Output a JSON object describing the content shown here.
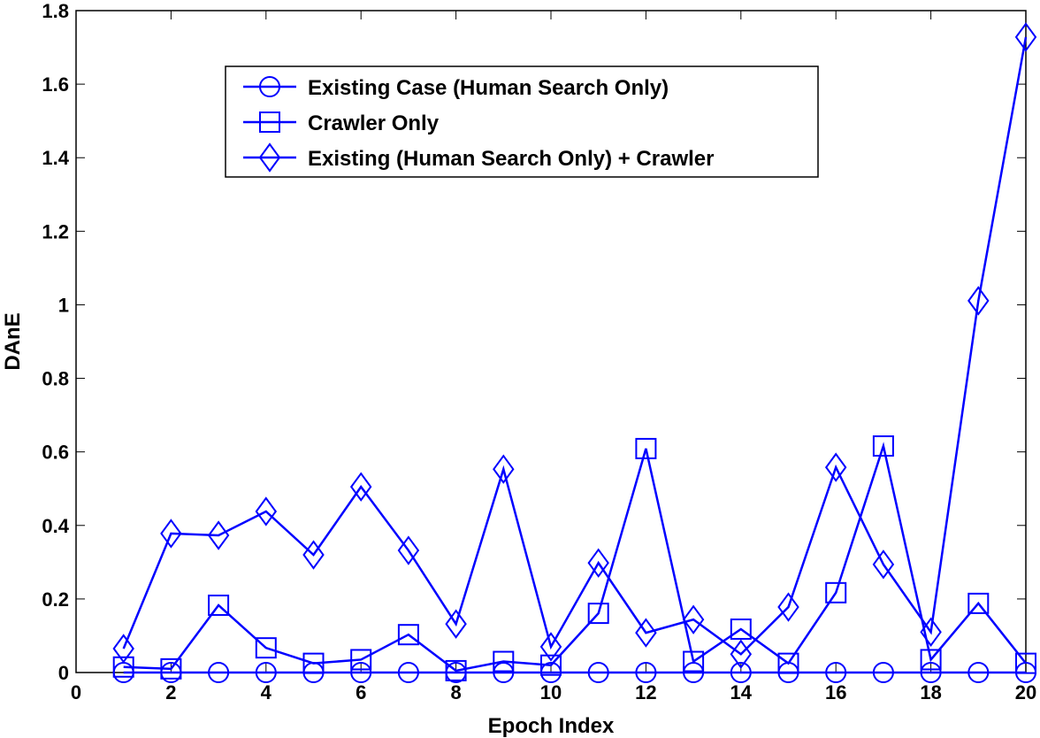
{
  "chart_data": {
    "type": "line",
    "xlabel": "Epoch Index",
    "ylabel": "DAnE",
    "x": [
      1,
      2,
      3,
      4,
      5,
      6,
      7,
      8,
      9,
      10,
      11,
      12,
      13,
      14,
      15,
      16,
      17,
      18,
      19,
      20
    ],
    "series": [
      {
        "name": "Existing Case (Human Search Only)",
        "color": "#0000ff",
        "marker": "circle",
        "values": [
          0,
          0,
          0,
          0,
          0,
          0,
          0,
          0,
          0,
          0,
          0,
          0,
          0,
          0,
          0,
          0,
          0,
          0,
          0,
          0
        ]
      },
      {
        "name": "Crawler Only",
        "color": "#0000ff",
        "marker": "square",
        "values": [
          0.015,
          0.01,
          0.183,
          0.067,
          0.025,
          0.035,
          0.103,
          0.005,
          0.03,
          0.02,
          0.161,
          0.609,
          0.03,
          0.118,
          0.025,
          0.217,
          0.616,
          0.035,
          0.188,
          0.025
        ]
      },
      {
        "name": "Existing (Human Search Only) + Crawler",
        "color": "#0000ff",
        "marker": "diamond",
        "values": [
          0.065,
          0.378,
          0.373,
          0.438,
          0.32,
          0.505,
          0.332,
          0.132,
          0.553,
          0.07,
          0.298,
          0.108,
          0.144,
          0.05,
          0.178,
          0.558,
          0.294,
          0.11,
          1.011,
          1.728
        ]
      }
    ],
    "xlim": [
      0,
      20
    ],
    "xticks": [
      0,
      2,
      4,
      6,
      8,
      10,
      12,
      14,
      16,
      18,
      20
    ],
    "ylim": [
      0,
      1.8
    ],
    "yticks": [
      0,
      0.2,
      0.4,
      0.6,
      0.8,
      1,
      1.2,
      1.4,
      1.6,
      1.8
    ],
    "legend": "upper center"
  }
}
